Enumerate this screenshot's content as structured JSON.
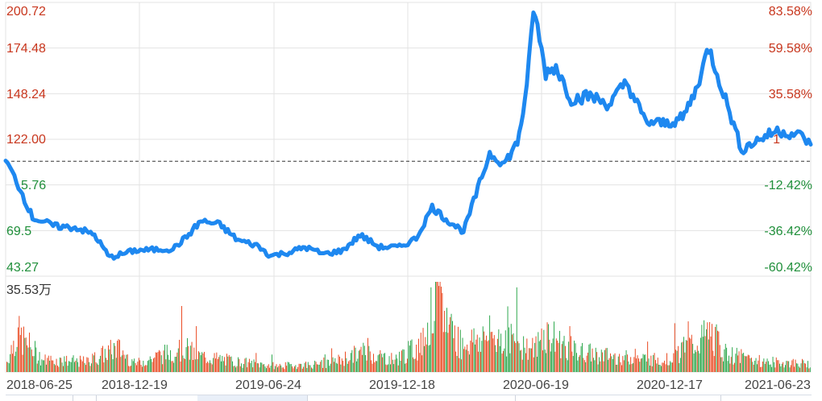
{
  "chart_data": {
    "type": "line",
    "title": "",
    "subtitle": "",
    "xlabel": "",
    "ylabel": "",
    "base_price": 109.38,
    "ylim": [
      43.27,
      200.72
    ],
    "y_ticks_left": [
      "200.72",
      "174.48",
      "148.24",
      "122.00",
      "95.76",
      "69.51",
      "43.27"
    ],
    "y_ticks_left_display": [
      "200.72",
      "174.48",
      "148.24",
      "122.00",
      "5.76",
      "69.5",
      "43.27"
    ],
    "y_ticks_right": [
      "83.58%",
      "59.58%",
      "35.58%",
      "11.58%",
      "-12.42%",
      "-36.42%",
      "-60.42%"
    ],
    "y_ticks_right_display": [
      "83.58%",
      "59.58%",
      "35.58%",
      "1",
      "-12.42%",
      "-36.42%",
      "-60.42%"
    ],
    "x_ticks": [
      "2018-06-25",
      "2018-12-19",
      "2019-06-24",
      "2019-12-18",
      "2020-06-19",
      "2020-12-17",
      "2021-06-23"
    ],
    "grid": true,
    "legend": null,
    "line_color": "#1e88f0",
    "up_color": "#e8380d",
    "down_color": "#19a03c",
    "dashed_baseline_color": "#333333",
    "volume_max_label": "35.53万",
    "volume_max": 35.53,
    "volume_unit": "万",
    "price_series": {
      "name": "Price",
      "x_dates_approx": [
        "2018-06-25",
        "2018-07-10",
        "2018-08-01",
        "2018-09-01",
        "2018-10-01",
        "2018-10-25",
        "2018-11-15",
        "2018-12-19",
        "2019-01-15",
        "2019-02-10",
        "2019-03-01",
        "2019-03-20",
        "2019-04-15",
        "2019-05-10",
        "2019-06-05",
        "2019-06-24",
        "2019-07-20",
        "2019-08-10",
        "2019-09-05",
        "2019-10-01",
        "2019-10-25",
        "2019-11-20",
        "2019-12-18",
        "2020-01-10",
        "2020-02-01",
        "2020-02-20",
        "2020-03-15",
        "2020-04-01",
        "2020-04-20",
        "2020-05-10",
        "2020-05-28",
        "2020-06-10",
        "2020-06-19",
        "2020-07-06",
        "2020-07-20",
        "2020-08-10",
        "2020-09-05",
        "2020-10-01",
        "2020-10-25",
        "2020-11-20",
        "2020-12-17",
        "2021-01-10",
        "2021-01-28",
        "2021-02-15",
        "2021-03-10",
        "2021-04-01",
        "2021-04-25",
        "2021-05-20",
        "2021-06-23",
        "2021-07-05"
      ],
      "values": [
        109.4,
        98.0,
        77.0,
        72.0,
        71.0,
        67.0,
        54.0,
        58.0,
        58.5,
        59.0,
        66.0,
        75.0,
        73.0,
        64.0,
        61.0,
        55.0,
        57.0,
        60.0,
        56.0,
        58.0,
        67.0,
        60.0,
        60.0,
        65.0,
        83.0,
        76.0,
        69.0,
        90.0,
        114.0,
        108.0,
        120.0,
        150.0,
        198.0,
        160.0,
        164.0,
        145.0,
        147.0,
        142.0,
        155.0,
        132.0,
        131.0,
        134.0,
        150.0,
        175.0,
        145.0,
        116.0,
        122.0,
        127.0,
        124.0,
        119.0
      ]
    },
    "volume_series": {
      "name": "Volume (万)",
      "note": "daily bars colored red (up) / green (down); peak 35.53万 near 2020-02",
      "profile_approx": [
        {
          "date": "2018-06-25",
          "value": 4
        },
        {
          "date": "2018-07-10",
          "value": 19
        },
        {
          "date": "2018-08-15",
          "value": 6
        },
        {
          "date": "2018-10-15",
          "value": 5
        },
        {
          "date": "2018-11-25",
          "value": 12
        },
        {
          "date": "2018-12-19",
          "value": 4
        },
        {
          "date": "2019-02-25",
          "value": 12
        },
        {
          "date": "2019-03-15",
          "value": 8
        },
        {
          "date": "2019-05-10",
          "value": 5
        },
        {
          "date": "2019-07-01",
          "value": 3
        },
        {
          "date": "2019-09-10",
          "value": 4
        },
        {
          "date": "2019-10-30",
          "value": 10
        },
        {
          "date": "2019-12-10",
          "value": 6
        },
        {
          "date": "2020-01-20",
          "value": 14
        },
        {
          "date": "2020-02-05",
          "value": 35.53
        },
        {
          "date": "2020-03-10",
          "value": 14
        },
        {
          "date": "2020-04-20",
          "value": 18
        },
        {
          "date": "2020-05-20",
          "value": 16
        },
        {
          "date": "2020-06-19",
          "value": 11
        },
        {
          "date": "2020-07-06",
          "value": 19
        },
        {
          "date": "2020-08-15",
          "value": 10
        },
        {
          "date": "2020-10-20",
          "value": 7
        },
        {
          "date": "2020-12-17",
          "value": 6
        },
        {
          "date": "2021-02-18",
          "value": 19
        },
        {
          "date": "2021-03-10",
          "value": 9
        },
        {
          "date": "2021-05-01",
          "value": 5
        },
        {
          "date": "2021-07-05",
          "value": 4
        }
      ]
    }
  }
}
